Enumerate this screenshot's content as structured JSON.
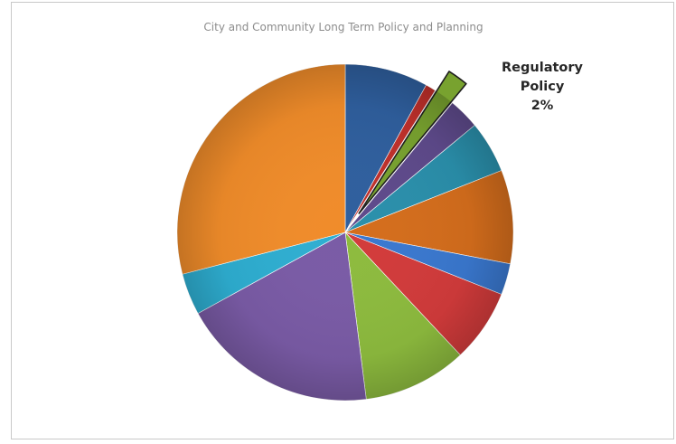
{
  "chart_data": {
    "type": "pie",
    "title": "City and Community Long Term Policy and Planning",
    "slices": [
      {
        "value": 8,
        "color": "#2f5f9e"
      },
      {
        "value": 1,
        "color": "#c0302b"
      },
      {
        "value": 2,
        "color": "#78a22f",
        "label": "Regulatory Policy",
        "percent_label": "2%",
        "exploded": true
      },
      {
        "value": 3,
        "color": "#5e4a8b"
      },
      {
        "value": 5,
        "color": "#2a8fab"
      },
      {
        "value": 9,
        "color": "#d46d1c"
      },
      {
        "value": 3,
        "color": "#3a78cf"
      },
      {
        "value": 7,
        "color": "#d23b3b"
      },
      {
        "value": 10,
        "color": "#8dbb3e"
      },
      {
        "value": 19,
        "color": "#7a5ba6"
      },
      {
        "value": 4,
        "color": "#2eaed1"
      },
      {
        "value": 29,
        "color": "#f08c2a"
      }
    ],
    "legend": "none"
  }
}
